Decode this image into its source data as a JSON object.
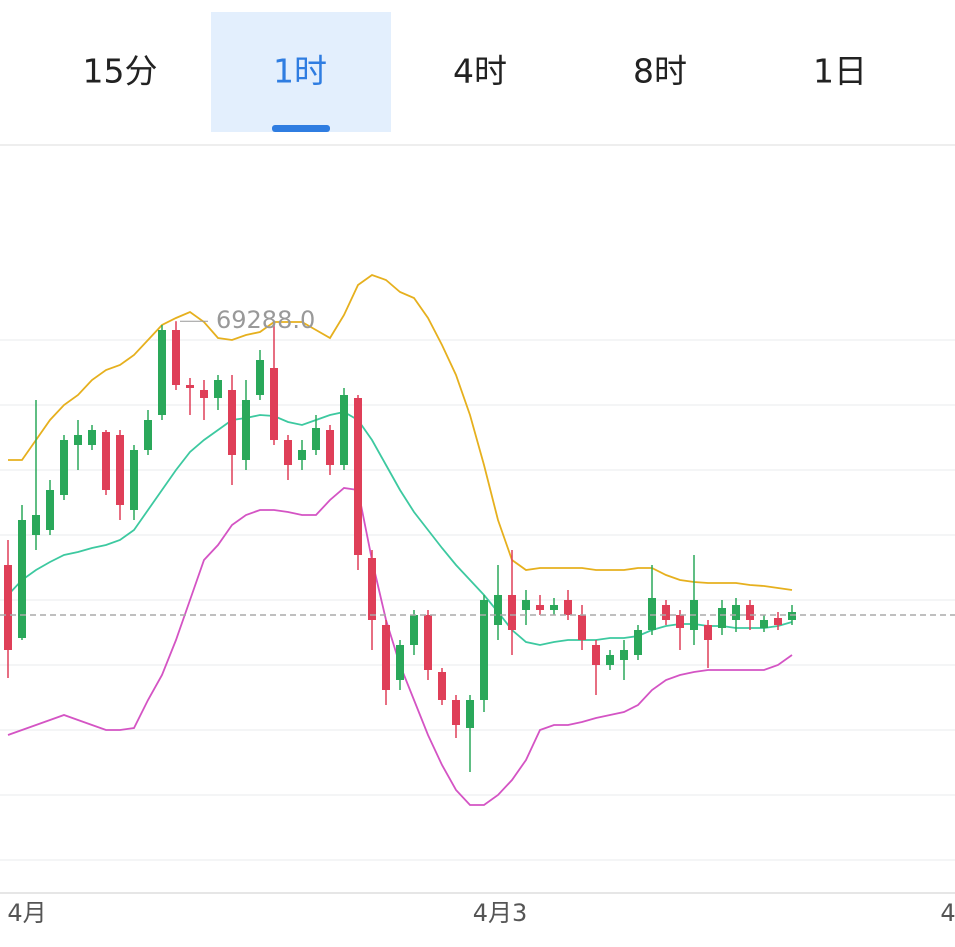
{
  "tabs": {
    "items": [
      "15分",
      "1时",
      "4时",
      "8时",
      "1日"
    ],
    "active": 1
  },
  "chart_data": {
    "type": "candlestick",
    "open": [
      66850,
      66120,
      67150,
      67200,
      67550,
      68050,
      68050,
      68180,
      68150,
      67400,
      68000,
      68350,
      69200,
      68650,
      68600,
      68520,
      68600,
      67900,
      68550,
      68820,
      68100,
      67900,
      68000,
      68200,
      67850,
      68520,
      66920,
      66250,
      65700,
      66050,
      66350,
      65780,
      65500,
      65220,
      65500,
      66250,
      66550,
      66400,
      66450,
      66400,
      66500,
      66350,
      66050,
      65850,
      65900,
      65950,
      66200,
      66450,
      66350,
      66200,
      66250,
      66220,
      66300,
      66450,
      66220,
      66320,
      66300
    ],
    "high": [
      67100,
      67450,
      68500,
      67700,
      68150,
      68300,
      68250,
      68200,
      68200,
      68050,
      68400,
      69250,
      69288,
      68720,
      68700,
      68750,
      68750,
      68700,
      69000,
      69250,
      68150,
      68100,
      68350,
      68250,
      68620,
      68550,
      67000,
      66300,
      66100,
      66400,
      66400,
      65820,
      65550,
      65550,
      66550,
      66850,
      67000,
      66600,
      66550,
      66520,
      66600,
      66450,
      66100,
      66000,
      66100,
      66250,
      66850,
      66500,
      66400,
      66950,
      66300,
      66500,
      66520,
      66500,
      66350,
      66380,
      66450
    ],
    "low": [
      65720,
      66100,
      67000,
      67150,
      67500,
      67800,
      68000,
      67550,
      67300,
      67300,
      67950,
      68300,
      68600,
      68350,
      68300,
      68400,
      67650,
      67800,
      68500,
      68050,
      67700,
      67800,
      67950,
      67750,
      67800,
      66800,
      66000,
      65450,
      65600,
      65950,
      65700,
      65450,
      65120,
      64780,
      65380,
      66100,
      65950,
      66250,
      66350,
      66350,
      66300,
      66000,
      65550,
      65800,
      65700,
      65900,
      66150,
      66250,
      66000,
      66050,
      65820,
      66150,
      66180,
      66200,
      66180,
      66200,
      66250
    ],
    "close": [
      66000,
      67300,
      67350,
      67600,
      68100,
      68150,
      68200,
      67600,
      67450,
      68000,
      68300,
      69200,
      68650,
      68620,
      68520,
      68700,
      67950,
      68500,
      68900,
      68100,
      67850,
      68000,
      68220,
      67850,
      68550,
      66950,
      66300,
      65600,
      66050,
      66350,
      65800,
      65500,
      65250,
      65500,
      66500,
      66550,
      66200,
      66500,
      66400,
      66450,
      66350,
      66100,
      65850,
      65950,
      66000,
      66200,
      66520,
      66300,
      66220,
      66500,
      66100,
      66420,
      66450,
      66300,
      66300,
      66250,
      66380
    ],
    "up_color": "#2aa85a",
    "down_color": "#df3f58",
    "overlays": [
      {
        "color": "#e6b01e",
        "values": [
          67900,
          67900,
          68100,
          68300,
          68450,
          68550,
          68700,
          68800,
          68850,
          68950,
          69100,
          69250,
          69320,
          69380,
          69280,
          69120,
          69100,
          69150,
          69180,
          69280,
          69280,
          69280,
          69200,
          69120,
          69350,
          69650,
          69750,
          69700,
          69580,
          69520,
          69320,
          69050,
          68750,
          68350,
          67850,
          67300,
          66900,
          66800,
          66820,
          66820,
          66820,
          66820,
          66800,
          66800,
          66800,
          66820,
          66820,
          66750,
          66700,
          66680,
          66670,
          66670,
          66670,
          66650,
          66640,
          66620,
          66600
        ]
      },
      {
        "color": "#3dc9a0",
        "values": [
          66550,
          66700,
          66800,
          66880,
          66950,
          66980,
          67020,
          67050,
          67100,
          67200,
          67400,
          67600,
          67800,
          67980,
          68100,
          68200,
          68300,
          68320,
          68350,
          68340,
          68280,
          68250,
          68300,
          68350,
          68380,
          68300,
          68100,
          67850,
          67600,
          67380,
          67200,
          67020,
          66850,
          66700,
          66550,
          66380,
          66200,
          66080,
          66050,
          66080,
          66100,
          66100,
          66100,
          66120,
          66120,
          66140,
          66200,
          66240,
          66260,
          66260,
          66240,
          66240,
          66220,
          66220,
          66220,
          66240,
          66280
        ]
      },
      {
        "color": "#d454c4",
        "values": [
          65150,
          65200,
          65250,
          65300,
          65350,
          65300,
          65250,
          65200,
          65200,
          65220,
          65500,
          65750,
          66100,
          66500,
          66900,
          67050,
          67250,
          67350,
          67400,
          67400,
          67380,
          67350,
          67350,
          67500,
          67620,
          67600,
          66900,
          66300,
          65850,
          65500,
          65150,
          64850,
          64600,
          64450,
          64450,
          64550,
          64700,
          64900,
          65200,
          65250,
          65250,
          65280,
          65320,
          65350,
          65380,
          65450,
          65600,
          65700,
          65750,
          65780,
          65800,
          65800,
          65800,
          65800,
          65800,
          65850,
          65950
        ]
      }
    ],
    "max_annotation": "69288.0",
    "current_price": 66350,
    "ylim": [
      63600,
      71050
    ],
    "gridlines": [
      69100,
      68450,
      67800,
      67150,
      66500,
      65850,
      65200,
      64550,
      63900
    ],
    "x_labels": [
      "4月",
      "4月3",
      "4"
    ]
  }
}
